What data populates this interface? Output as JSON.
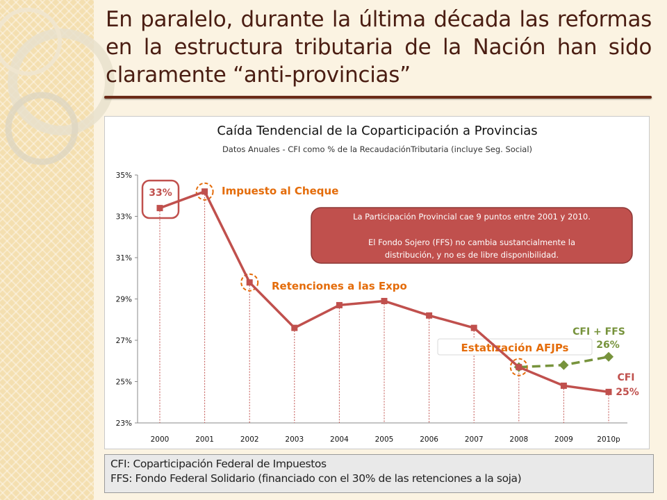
{
  "slide": {
    "title": "En paralelo, durante la última década las reformas en la estructura tributaria de la Nación han sido claramente “anti-provincias”"
  },
  "chart_data": {
    "type": "line",
    "title": "Caída Tendencial de la Coparticipación a Provincias",
    "subtitle": "Datos Anuales - CFI como % de la RecaudaciónTributaria  (incluye Seg. Social)",
    "categories": [
      "2000",
      "2001",
      "2002",
      "2003",
      "2004",
      "2005",
      "2006",
      "2007",
      "2008",
      "2009",
      "2010p"
    ],
    "y_ticks": [
      "23%",
      "25%",
      "27%",
      "29%",
      "31%",
      "33%",
      "35%"
    ],
    "ylim": [
      23,
      35
    ],
    "grid": false,
    "series": [
      {
        "name": "CFI",
        "color": "#c0504d",
        "values": [
          33.4,
          34.2,
          29.8,
          27.6,
          28.7,
          28.9,
          28.2,
          27.6,
          25.7,
          24.8,
          24.5
        ]
      },
      {
        "name": "CFI + FFS",
        "color": "#77933c",
        "dashed": true,
        "values": [
          null,
          null,
          null,
          null,
          null,
          null,
          null,
          null,
          25.7,
          25.8,
          26.2
        ]
      }
    ],
    "annotations": {
      "label_2000": "33%",
      "cheque": "Impuesto al Cheque",
      "retenciones": "Retenciones a las Expo",
      "afjp": "Estatización AFJPs",
      "cfi_ffs_name": "CFI + FFS",
      "cfi_ffs_value": "26%",
      "cfi_name": "CFI",
      "cfi_value": "25%",
      "callout_line1": "La Participación  Provincial cae 9 puntos entre 2001 y 2010.",
      "callout_line2": "El Fondo Sojero (FFS) no cambia sustancialmente  la",
      "callout_line3": "distribución,  y no es de libre disponibilidad."
    },
    "colors": {
      "highlight": "#e46c0a",
      "callout_fill": "#c0504d",
      "green": "#77933c",
      "red": "#c0504d"
    }
  },
  "footnote": {
    "line1": "CFI: Coparticipación Federal de Impuestos",
    "line2": "FFS: Fondo Federal Solidario (financiado con el 30% de las retenciones a la soja)"
  }
}
